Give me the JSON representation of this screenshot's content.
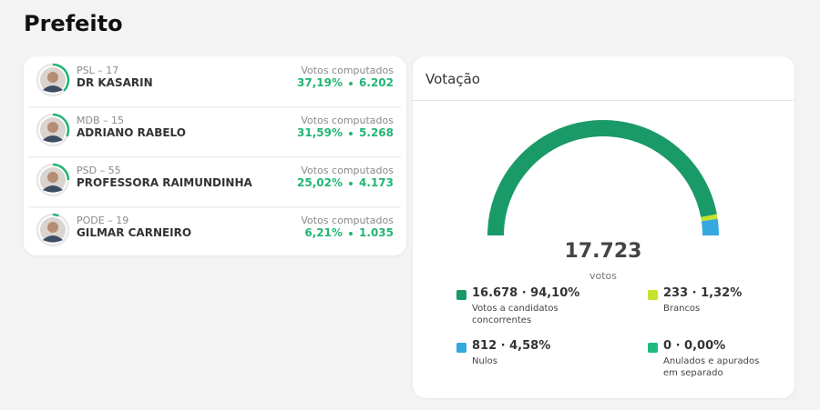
{
  "title": "Prefeito",
  "candidates": [
    {
      "party_line": "PSL – 17",
      "name": "DR KASARIN",
      "status": "Votos computados",
      "percent": 37.19,
      "percent_label": "37,19%",
      "votes": "6.202"
    },
    {
      "party_line": "MDB – 15",
      "name": "ADRIANO RABELO",
      "status": "Votos computados",
      "percent": 31.59,
      "percent_label": "31,59%",
      "votes": "5.268"
    },
    {
      "party_line": "PSD – 55",
      "name": "PROFESSORA RAIMUNDINHA",
      "status": "Votos computados",
      "percent": 25.02,
      "percent_label": "25,02%",
      "votes": "4.173"
    },
    {
      "party_line": "PODE – 19",
      "name": "GILMAR CARNEIRO",
      "status": "Votos computados",
      "percent": 6.21,
      "percent_label": "6,21%",
      "votes": "1.035"
    }
  ],
  "ring_color": "#22b573",
  "votacao": {
    "title": "Votação",
    "total": "17.723",
    "total_unit": "votos",
    "segments": [
      {
        "value": 94.1,
        "value_label": "16.678 · 94,10%",
        "label": "Votos a candidatos concorrentes",
        "color": "#1a9a68"
      },
      {
        "value": 1.32,
        "value_label": "233 · 1,32%",
        "label": "Brancos",
        "color": "#c6e22c"
      },
      {
        "value": 4.58,
        "value_label": "812 · 4,58%",
        "label": "Nulos",
        "color": "#35a8e0"
      },
      {
        "value": 0.0,
        "value_label": "0 · 0,00%",
        "label": "Anulados e apurados em separado",
        "color": "#1fba7c"
      }
    ]
  }
}
